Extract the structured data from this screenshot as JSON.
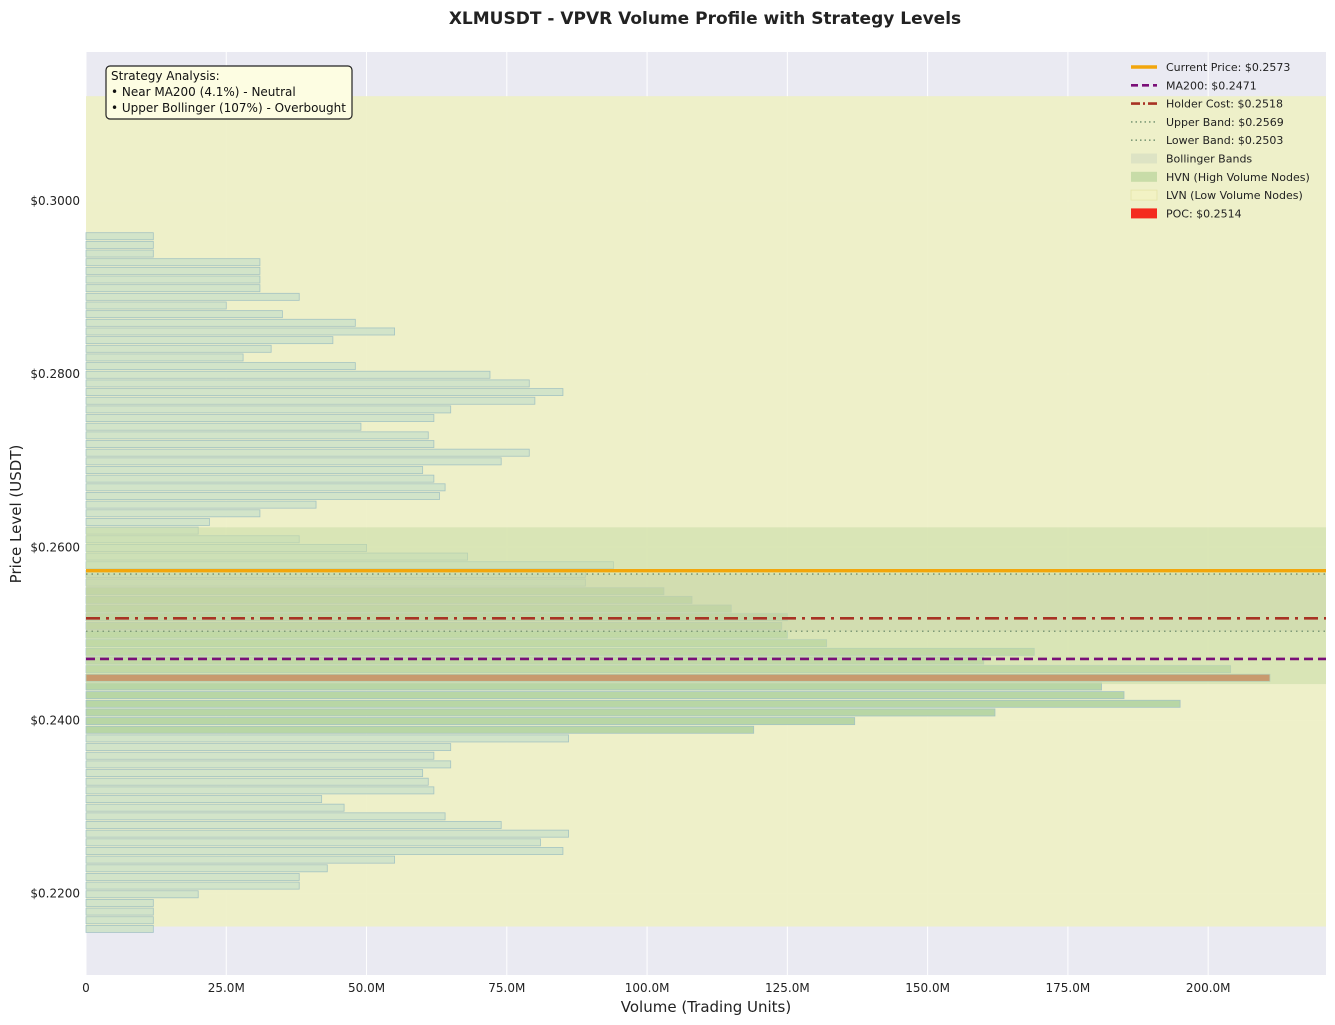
{
  "chart_data": {
    "type": "bar",
    "orientation": "horizontal",
    "title": "XLMUSDT - VPVR Volume Profile with Strategy Levels",
    "xlabel": "Volume (Trading Units)",
    "ylabel": "Price Level (USDT)",
    "xlim": [
      0,
      221
    ],
    "ylim": [
      0.2106,
      0.3172
    ],
    "x_unit": "M",
    "x_ticks": [
      {
        "value": 0,
        "label": "0"
      },
      {
        "value": 25,
        "label": "25.0M"
      },
      {
        "value": 50,
        "label": "50.0M"
      },
      {
        "value": 75,
        "label": "75.0M"
      },
      {
        "value": 100,
        "label": "100.0M"
      },
      {
        "value": 125,
        "label": "125.0M"
      },
      {
        "value": 150,
        "label": "150.0M"
      },
      {
        "value": 175,
        "label": "175.0M"
      },
      {
        "value": 200,
        "label": "200.0M"
      }
    ],
    "y_ticks": [
      {
        "value": 0.22,
        "label": "$0.2200"
      },
      {
        "value": 0.24,
        "label": "$0.2400"
      },
      {
        "value": 0.26,
        "label": "$0.2600"
      },
      {
        "value": 0.28,
        "label": "$0.2800"
      },
      {
        "value": 0.3,
        "label": "$0.3000"
      }
    ],
    "grid": true,
    "legend_position": "top-right",
    "bin_price_start": 0.2159,
    "bin_price_step": 0.001,
    "volume_bins": [
      12,
      12,
      12,
      12,
      20,
      38,
      38,
      43,
      55,
      85,
      81,
      86,
      74,
      64,
      46,
      42,
      62,
      61,
      60,
      65,
      62,
      65,
      86,
      119,
      137,
      162,
      195,
      185,
      181,
      211,
      204,
      160,
      169,
      132,
      125,
      124,
      125,
      115,
      108,
      103,
      89,
      89,
      94,
      68,
      50,
      38,
      20,
      22,
      31,
      41,
      63,
      64,
      62,
      60,
      74,
      79,
      62,
      61,
      49,
      62,
      65,
      80,
      85,
      79,
      72,
      48,
      28,
      33,
      44,
      55,
      48,
      35,
      25,
      38,
      31,
      31,
      31,
      31,
      12,
      12,
      12
    ],
    "hvn_bins": [
      23,
      24,
      25,
      26,
      27,
      28,
      29,
      30,
      31,
      32,
      33,
      34,
      35,
      36,
      37,
      38,
      39
    ],
    "poc_bin": 29,
    "levels": {
      "current_price": 0.2573,
      "ma200": 0.2471,
      "holder_cost": 0.2518,
      "upper_band": 0.2569,
      "lower_band": 0.2503,
      "poc": 0.2514
    },
    "zones": {
      "bollinger": [
        0.2503,
        0.2569
      ],
      "hvn": [
        0.2442,
        0.2623
      ],
      "lvn": [
        0.2162,
        0.3121
      ]
    },
    "legend": [
      {
        "label": "Current Price: $0.2573",
        "kind": "solid",
        "color": "#f2a60c"
      },
      {
        "label": "MA200: $0.2471",
        "kind": "dash",
        "color": "#7a0f78"
      },
      {
        "label": "Holder Cost: $0.2518",
        "kind": "dashdot",
        "color": "#a83224"
      },
      {
        "label": "Upper Band: $0.2569",
        "kind": "dot",
        "color": "#7f9a78"
      },
      {
        "label": "Lower Band: $0.2503",
        "kind": "dot",
        "color": "#7f9a78"
      },
      {
        "label": "Bollinger Bands",
        "kind": "patch",
        "color": "#dde3c4"
      },
      {
        "label": "HVN (High Volume Nodes)",
        "kind": "patch",
        "color": "#c8dca8"
      },
      {
        "label": "LVN (Low Volume Nodes)",
        "kind": "patch-hatch",
        "color": "#f2f2c4"
      },
      {
        "label": "POC: $0.2514",
        "kind": "patch",
        "color": "#f42a1e"
      }
    ],
    "annotation": {
      "lines": [
        "Strategy Analysis:",
        "• Near MA200 (4.1%) - Neutral",
        "• Upper Bollinger (107%) - Overbought"
      ]
    },
    "colors": {
      "plot_background": "#eaeaf2",
      "volume_bar_fill": "#cfe3c9",
      "volume_bar_stroke": "#9dbfc2",
      "hvn_bar_fill": "#b3d4a2",
      "poc_bar_fill": "#c84a2a",
      "lvn_zone": "#eef0c6",
      "hvn_zone": "#c9dda5",
      "bollinger_zone": "#c7cfa5"
    }
  }
}
